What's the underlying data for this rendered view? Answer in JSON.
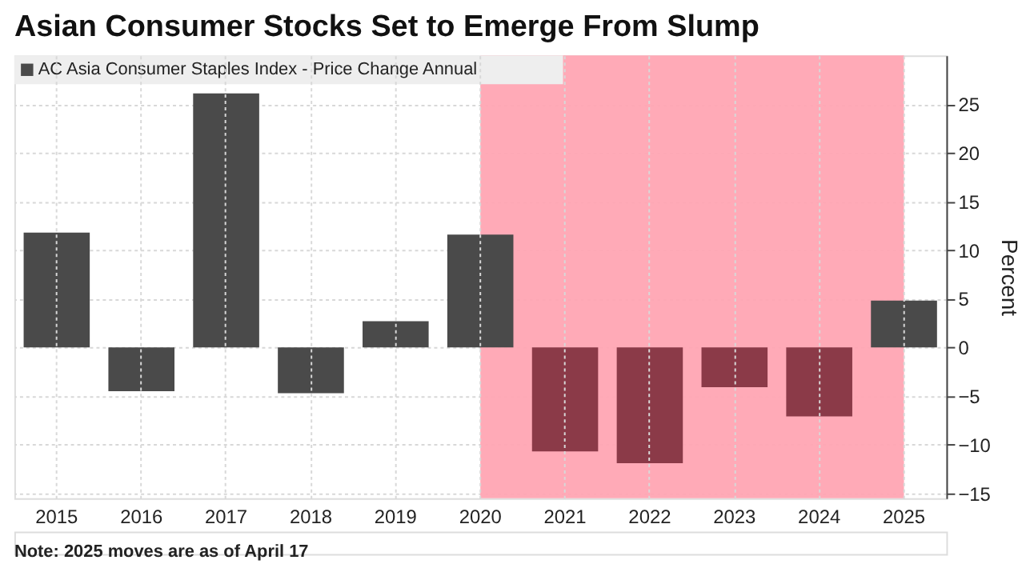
{
  "chart_data": {
    "type": "bar",
    "title": "Asian Consumer Stocks Set to Emerge From Slump",
    "categories": [
      "2015",
      "2016",
      "2017",
      "2018",
      "2019",
      "2020",
      "2021",
      "2022",
      "2023",
      "2024",
      "2025"
    ],
    "series": [
      {
        "name": "AC Asia Consumer Staples Index - Price Change Annual",
        "color": "#4a4a4a",
        "values": [
          11.8,
          -4.5,
          26.1,
          -4.7,
          2.7,
          11.6,
          -10.7,
          -11.9,
          -4.1,
          -7.1,
          4.8
        ],
        "colors": [
          "#4a4a4a",
          "#4a4a4a",
          "#4a4a4a",
          "#4a4a4a",
          "#4a4a4a",
          "#4a4a4a",
          "#8b3a48",
          "#8b3a48",
          "#8b3a48",
          "#8b3a48",
          "#4a4a4a"
        ]
      }
    ],
    "ylabel": "Percent",
    "ylim": [
      -15.5,
      30
    ],
    "yticks": [
      -15,
      -10,
      -5,
      0,
      5,
      10,
      15,
      20,
      25
    ],
    "bands": [
      {
        "axis": "x",
        "from": "2020",
        "to": "2025",
        "color": "#ffa5b3"
      }
    ],
    "grid": true,
    "legend": "top left",
    "annotations": [
      "Note: 2025 moves are as of April 17"
    ]
  }
}
